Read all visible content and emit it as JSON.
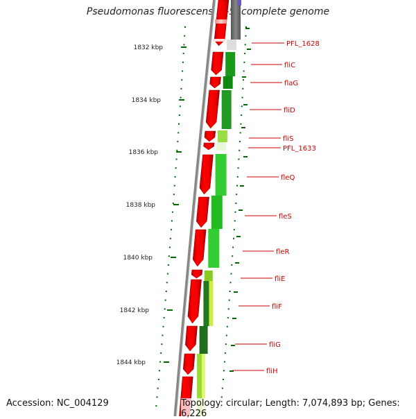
{
  "title": "Pseudomonas fluorescens Pf-5, complete genome",
  "footer": {
    "accession": "Accession: NC_004129",
    "summary": "Topology: circular; Length: 7,074,893 bp; Genes: 6,226"
  },
  "colors": {
    "cds_reverse": "#ee0000",
    "gc_high": "#22bb22",
    "gc_low": "#ccee44",
    "label": "#cc0000",
    "tick": "#006600",
    "backbone": "#888888"
  },
  "scale_labels": [
    "1832 kbp",
    "1834 kbp",
    "1836 kbp",
    "1838 kbp",
    "1840 kbp",
    "1842 kbp",
    "1844 kbp"
  ],
  "gene_labels": [
    "PFL_1628",
    "fliC",
    "flaG",
    "fliD",
    "fliS",
    "PFL_1633",
    "fleQ",
    "fleS",
    "fleR",
    "fliE",
    "fliF",
    "fliG",
    "fliH"
  ]
}
